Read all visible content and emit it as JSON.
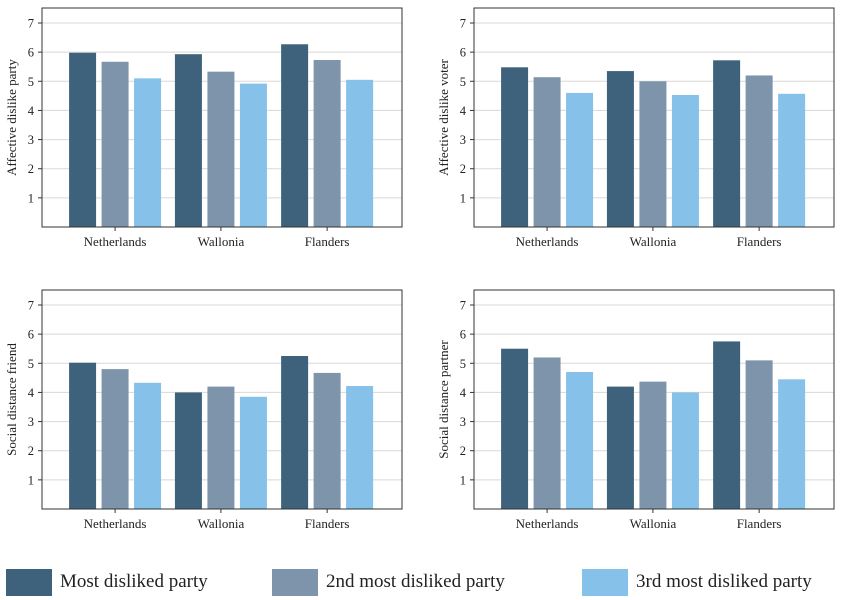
{
  "colors": {
    "series": [
      "#3e627c",
      "#7d94ab",
      "#85c1e9"
    ],
    "grid": "#d8d8d8",
    "frame": "#333333"
  },
  "legend": {
    "position": "bottom",
    "items": [
      "Most disliked party",
      "2nd most disliked party",
      "3rd most disliked party"
    ]
  },
  "chart_data": [
    {
      "type": "bar",
      "ylabel": "Affective dislike party",
      "categories": [
        "Netherlands",
        "Wallonia",
        "Flanders"
      ],
      "ylim": [
        0,
        7
      ],
      "yticks": [
        1,
        2,
        3,
        4,
        5,
        6,
        7
      ],
      "grid": true,
      "series": [
        {
          "name": "Most disliked party",
          "values": [
            5.98,
            5.93,
            6.27
          ]
        },
        {
          "name": "2nd most disliked party",
          "values": [
            5.67,
            5.33,
            5.73
          ]
        },
        {
          "name": "3rd most disliked party",
          "values": [
            5.1,
            4.92,
            5.05
          ]
        }
      ]
    },
    {
      "type": "bar",
      "ylabel": "Affective dislike voter",
      "categories": [
        "Netherlands",
        "Wallonia",
        "Flanders"
      ],
      "ylim": [
        0,
        7
      ],
      "yticks": [
        1,
        2,
        3,
        4,
        5,
        6,
        7
      ],
      "grid": true,
      "series": [
        {
          "name": "Most disliked party",
          "values": [
            5.48,
            5.35,
            5.72
          ]
        },
        {
          "name": "2nd most disliked party",
          "values": [
            5.14,
            5.0,
            5.2
          ]
        },
        {
          "name": "3rd most disliked party",
          "values": [
            4.6,
            4.53,
            4.57
          ]
        }
      ]
    },
    {
      "type": "bar",
      "ylabel": "Social distance friend",
      "categories": [
        "Netherlands",
        "Wallonia",
        "Flanders"
      ],
      "ylim": [
        0,
        7
      ],
      "yticks": [
        1,
        2,
        3,
        4,
        5,
        6,
        7
      ],
      "grid": true,
      "series": [
        {
          "name": "Most disliked party",
          "values": [
            5.02,
            4.0,
            5.25
          ]
        },
        {
          "name": "2nd most disliked party",
          "values": [
            4.8,
            4.2,
            4.67
          ]
        },
        {
          "name": "3rd most disliked party",
          "values": [
            4.33,
            3.85,
            4.22
          ]
        }
      ]
    },
    {
      "type": "bar",
      "ylabel": "Social distance partner",
      "categories": [
        "Netherlands",
        "Wallonia",
        "Flanders"
      ],
      "ylim": [
        0,
        7
      ],
      "yticks": [
        1,
        2,
        3,
        4,
        5,
        6,
        7
      ],
      "grid": true,
      "series": [
        {
          "name": "Most disliked party",
          "values": [
            5.5,
            4.2,
            5.75
          ]
        },
        {
          "name": "2nd most disliked party",
          "values": [
            5.2,
            4.37,
            5.1
          ]
        },
        {
          "name": "3rd most disliked party",
          "values": [
            4.7,
            4.0,
            4.45
          ]
        }
      ]
    }
  ]
}
